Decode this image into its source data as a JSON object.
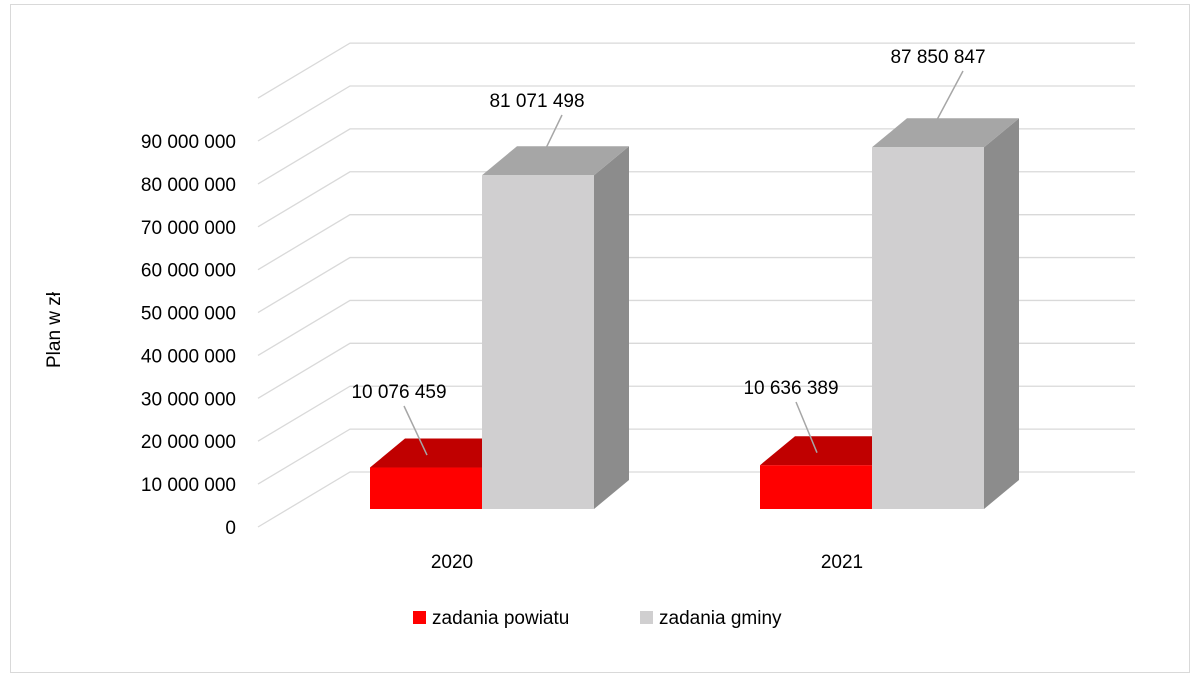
{
  "chart_data": {
    "type": "bar",
    "title": "",
    "xlabel": "",
    "ylabel": "Plan w zł",
    "ylim": [
      0,
      90000000
    ],
    "yticks": [
      0,
      10000000,
      20000000,
      30000000,
      40000000,
      50000000,
      60000000,
      70000000,
      80000000,
      90000000
    ],
    "ytick_labels": [
      "0",
      "10 000 000",
      "20 000 000",
      "30 000 000",
      "40 000 000",
      "50 000 000",
      "60 000 000",
      "70 000 000",
      "80 000 000",
      "90 000 000"
    ],
    "categories": [
      "2020",
      "2021"
    ],
    "series": [
      {
        "name": "zadania powiatu",
        "values": [
          10076459,
          10636389
        ],
        "labels": [
          "10 076 459",
          "10 636 389"
        ],
        "color": "#ff0000"
      },
      {
        "name": "zadania gminy",
        "values": [
          81071498,
          87850847
        ],
        "labels": [
          "81 071 498",
          "87 850 847"
        ],
        "color": "#d0cfd0"
      }
    ],
    "grid": true,
    "legend_position": "bottom",
    "style": "3d"
  }
}
